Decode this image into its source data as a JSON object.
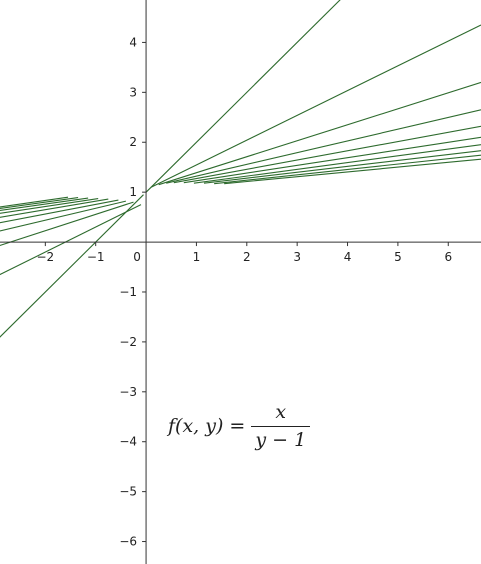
{
  "chart_data": {
    "type": "line",
    "title": "",
    "xlabel": "",
    "ylabel": "",
    "xlim": [
      -2.9,
      6.65
    ],
    "ylim": [
      -6.45,
      4.85
    ],
    "x_ticks": [
      -2,
      -1,
      0,
      1,
      2,
      3,
      4,
      5,
      6
    ],
    "y_ticks": [
      -6,
      -5,
      -4,
      -3,
      -2,
      -1,
      1,
      2,
      3,
      4
    ],
    "x_tick_labels": [
      "−2",
      "−1",
      "0",
      "1",
      "2",
      "3",
      "4",
      "5",
      "6"
    ],
    "y_tick_labels": [
      "−6",
      "−5",
      "−4",
      "−3",
      "−2",
      "−1",
      "1",
      "2",
      "3",
      "4"
    ],
    "grid": false,
    "line_color": "#2e6b2e",
    "series": [
      {
        "segments": [
          [
            [
              0.0,
              1.0
            ],
            [
              4.0,
              5.0
            ]
          ],
          [
            [
              -3.0,
              -2.0
            ],
            [
              -0.05,
              0.95
            ]
          ]
        ]
      },
      {
        "segments": [
          [
            [
              0.1,
              1.1
            ],
            [
              6.65,
              4.35
            ]
          ],
          [
            [
              -3.0,
              -0.7
            ],
            [
              -0.1,
              0.75
            ]
          ]
        ]
      },
      {
        "segments": [
          [
            [
              0.25,
              1.15
            ],
            [
              6.65,
              3.2
            ]
          ],
          [
            [
              -3.0,
              -0.1
            ],
            [
              -0.25,
              0.8
            ]
          ]
        ]
      },
      {
        "segments": [
          [
            [
              0.4,
              1.18
            ],
            [
              6.65,
              2.65
            ]
          ],
          [
            [
              -3.0,
              0.2
            ],
            [
              -0.4,
              0.82
            ]
          ]
        ]
      },
      {
        "segments": [
          [
            [
              0.55,
              1.19
            ],
            [
              6.65,
              2.32
            ]
          ],
          [
            [
              -3.0,
              0.37
            ],
            [
              -0.55,
              0.84
            ]
          ]
        ]
      },
      {
        "segments": [
          [
            [
              0.75,
              1.19
            ],
            [
              6.65,
              2.1
            ]
          ],
          [
            [
              -3.0,
              0.48
            ],
            [
              -0.75,
              0.86
            ]
          ]
        ]
      },
      {
        "segments": [
          [
            [
              0.95,
              1.18
            ],
            [
              6.65,
              1.95
            ]
          ],
          [
            [
              -3.0,
              0.56
            ],
            [
              -0.95,
              0.87
            ]
          ]
        ]
      },
      {
        "segments": [
          [
            [
              1.15,
              1.18
            ],
            [
              6.65,
              1.83
            ]
          ],
          [
            [
              -3.0,
              0.62
            ],
            [
              -1.15,
              0.88
            ]
          ]
        ]
      },
      {
        "segments": [
          [
            [
              1.35,
              1.17
            ],
            [
              6.65,
              1.74
            ]
          ],
          [
            [
              -3.0,
              0.66
            ],
            [
              -1.35,
              0.89
            ]
          ]
        ]
      },
      {
        "segments": [
          [
            [
              1.55,
              1.17
            ],
            [
              6.65,
              1.66
            ]
          ],
          [
            [
              -3.0,
              0.69
            ],
            [
              -1.55,
              0.9
            ]
          ]
        ]
      }
    ]
  },
  "formula": {
    "lhs": "f(x, y) =",
    "numerator": "x",
    "denominator": "y − 1"
  }
}
